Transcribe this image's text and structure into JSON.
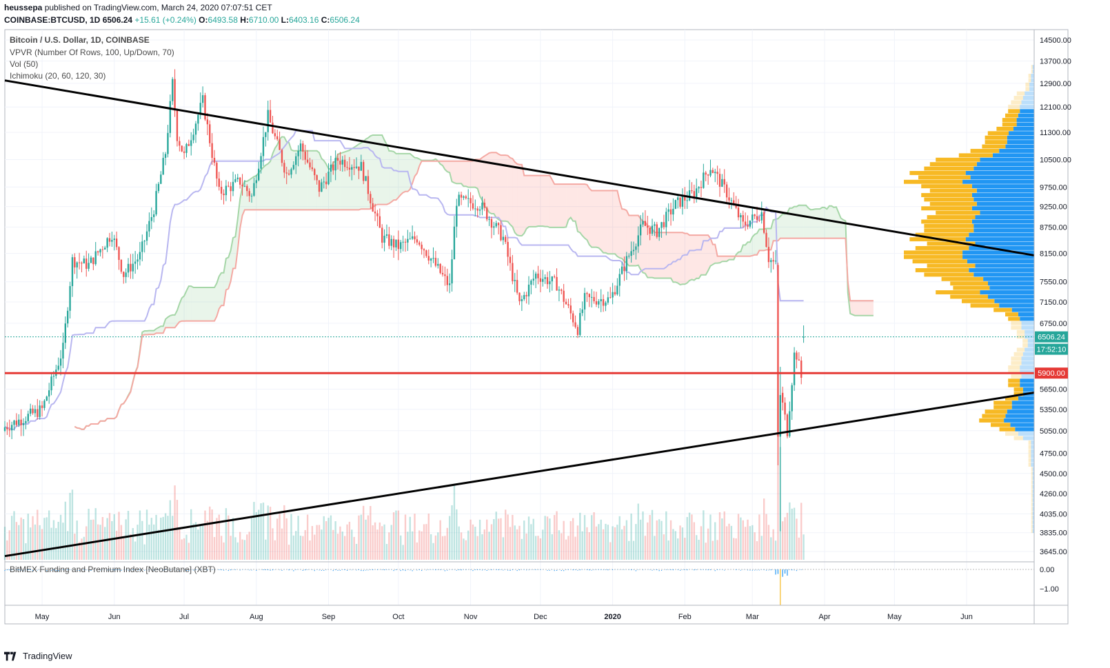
{
  "header": {
    "author": "heussepa",
    "published_text": "published on TradingView.com, March 24, 2020 07:07:51 CET",
    "symbol_line": "COINBASE:BTCUSD, 1D",
    "last": "6506.24",
    "change": "+15.61 (+0.24%)",
    "open_label": "O:",
    "open": "6493.58",
    "high_label": "H:",
    "high": "6710.00",
    "low_label": "L:",
    "low": "6403.16",
    "close_label": "C:",
    "close": "6506.24"
  },
  "legend": {
    "title": "Bitcoin / U.S. Dollar, 1D, COINBASE",
    "vpvr": "VPVR (Number Of Rows, 100, Up/Down, 70)",
    "vol": "Vol (50)",
    "ichimoku": "Ichimoku (20, 60, 120, 30)"
  },
  "sub_indicator": {
    "title": "BitMEX Funding and Premium Index [NeoButane] (XBT)",
    "ticks": [
      "0.00",
      "−1.00"
    ]
  },
  "footer": {
    "brand": "TradingView"
  },
  "colors": {
    "up": "#26a69a",
    "down": "#ef5350",
    "horizontal_line": "#e53935",
    "vpvr_up": "#2196f3",
    "vpvr_down": "#f7b924",
    "trendline": "#000000",
    "tag_teal": "#26a69a"
  },
  "chart_data": {
    "type": "candlestick",
    "symbol": "COINBASE:BTCUSD",
    "interval": "1D",
    "x_tick_labels": [
      "May",
      "Jun",
      "Jul",
      "Aug",
      "Sep",
      "Oct",
      "Nov",
      "Dec",
      "2020",
      "Feb",
      "Mar",
      "Apr",
      "May",
      "Jun"
    ],
    "y_tick_labels": [
      14500,
      13700,
      12900,
      12100,
      11300,
      10500,
      9750,
      9250,
      8750,
      8150,
      7550,
      7150,
      6750,
      5650,
      5350,
      5050,
      4750,
      4500,
      4260,
      4035,
      3835,
      3645
    ],
    "ylim": [
      3600,
      14800
    ],
    "y_scale": "log",
    "price_tags": {
      "last_price": "6506.24",
      "countdown": "17:52:10",
      "level": "5900.00"
    },
    "horizontal_level": 5900,
    "trendlines": [
      {
        "name": "upper",
        "from": {
          "date": "2019-04-15",
          "price": 13000
        },
        "to": {
          "date": "2020-03-19",
          "price": 9050
        }
      },
      {
        "name": "lower",
        "from": {
          "date": "2019-04-15",
          "price": 3600
        },
        "to": {
          "date": "2020-03-19",
          "price": 5050
        }
      }
    ],
    "price_path": [
      [
        "2019-04-15",
        5100
      ],
      [
        "2019-05-01",
        5350
      ],
      [
        "2019-05-10",
        6300
      ],
      [
        "2019-05-14",
        8000
      ],
      [
        "2019-05-21",
        7900
      ],
      [
        "2019-05-31",
        8600
      ],
      [
        "2019-06-05",
        7700
      ],
      [
        "2019-06-12",
        8100
      ],
      [
        "2019-06-18",
        9200
      ],
      [
        "2019-06-23",
        10700
      ],
      [
        "2019-06-26",
        12900
      ],
      [
        "2019-06-28",
        11200
      ],
      [
        "2019-07-01",
        10600
      ],
      [
        "2019-07-09",
        12300
      ],
      [
        "2019-07-16",
        9600
      ],
      [
        "2019-07-25",
        9900
      ],
      [
        "2019-07-30",
        9500
      ],
      [
        "2019-08-06",
        11800
      ],
      [
        "2019-08-14",
        10100
      ],
      [
        "2019-08-20",
        10900
      ],
      [
        "2019-08-28",
        9700
      ],
      [
        "2019-09-05",
        10500
      ],
      [
        "2019-09-15",
        10300
      ],
      [
        "2019-09-24",
        8500
      ],
      [
        "2019-10-01",
        8300
      ],
      [
        "2019-10-09",
        8500
      ],
      [
        "2019-10-23",
        7450
      ],
      [
        "2019-10-26",
        9400
      ],
      [
        "2019-11-05",
        9300
      ],
      [
        "2019-11-15",
        8500
      ],
      [
        "2019-11-22",
        7100
      ],
      [
        "2019-11-29",
        7700
      ],
      [
        "2019-12-08",
        7500
      ],
      [
        "2019-12-17",
        6650
      ],
      [
        "2019-12-20",
        7200
      ],
      [
        "2019-12-31",
        7200
      ],
      [
        "2020-01-07",
        8000
      ],
      [
        "2020-01-14",
        8800
      ],
      [
        "2020-01-20",
        8650
      ],
      [
        "2020-01-28",
        9300
      ],
      [
        "2020-02-05",
        9600
      ],
      [
        "2020-02-12",
        10300
      ],
      [
        "2020-02-19",
        9600
      ],
      [
        "2020-02-26",
        8800
      ],
      [
        "2020-03-05",
        9100
      ],
      [
        "2020-03-08",
        8050
      ],
      [
        "2020-03-11",
        7900
      ],
      [
        "2020-03-12",
        4970
      ],
      [
        "2020-03-13",
        5600
      ],
      [
        "2020-03-16",
        5050
      ],
      [
        "2020-03-19",
        6200
      ],
      [
        "2020-03-20",
        6200
      ],
      [
        "2020-03-22",
        5830
      ],
      [
        "2020-03-23",
        6506
      ]
    ]
  }
}
